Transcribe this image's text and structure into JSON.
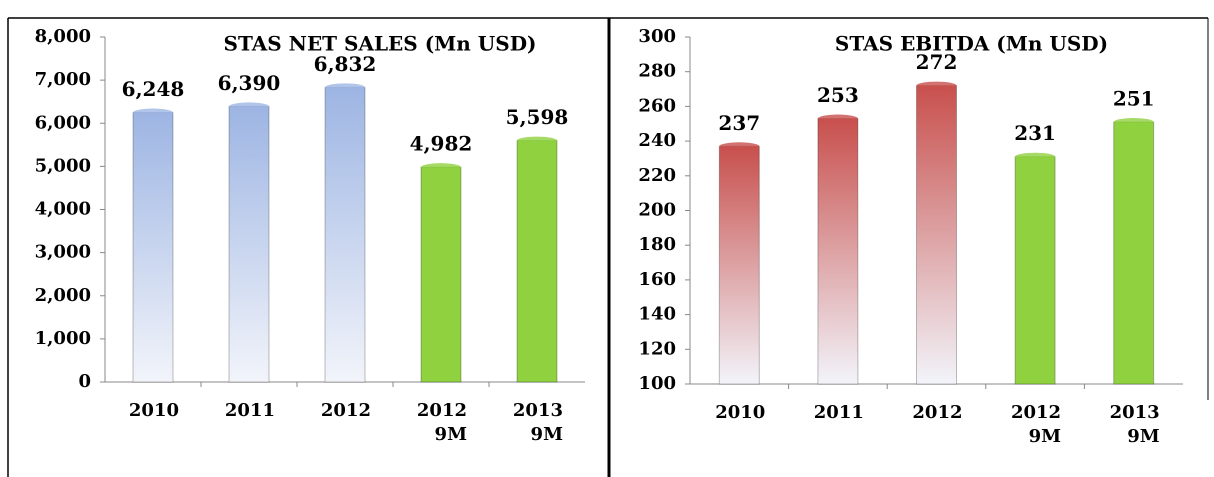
{
  "chart_data": [
    {
      "type": "bar",
      "title": "STAS NET SALES  (Mn USD)",
      "categories": [
        "2010",
        "2011",
        "2012",
        "2012 9M",
        "2013 9M"
      ],
      "values": [
        6248,
        6390,
        6832,
        4982,
        5598
      ],
      "value_labels": [
        "6,248",
        "6,390",
        "6,832",
        "4,982",
        "5,598"
      ],
      "colors": [
        "#9db5e3",
        "#9db5e3",
        "#9db5e3",
        "#8fd13f",
        "#8fd13f"
      ],
      "ylim": [
        0,
        8000
      ],
      "yticks": [
        0,
        {
          "value": 1000,
          "label": "1,000"
        },
        {
          "value": 2000,
          "label": "2,000"
        },
        {
          "value": 3000,
          "label": "3,000"
        },
        {
          "value": 4000,
          "label": "4,000"
        },
        {
          "value": 5000,
          "label": "5,000"
        },
        {
          "value": 6000,
          "label": "6,000"
        },
        {
          "value": 7000,
          "label": "7,000"
        },
        {
          "value": 8000,
          "label": "8,000"
        }
      ],
      "grid": false
    },
    {
      "type": "bar",
      "title": "STAS EBITDA (Mn USD)",
      "categories": [
        "2010",
        "2011",
        "2012",
        "2012 9M",
        "2013 9M"
      ],
      "values": [
        237,
        253,
        272,
        231,
        251
      ],
      "colors": [
        "#c8504d",
        "#c8504d",
        "#c8504d",
        "#8fd13f",
        "#8fd13f"
      ],
      "ylim": [
        100,
        300
      ],
      "yticks": [
        100,
        120,
        140,
        160,
        180,
        200,
        220,
        240,
        260,
        280,
        300
      ],
      "grid": false
    }
  ]
}
